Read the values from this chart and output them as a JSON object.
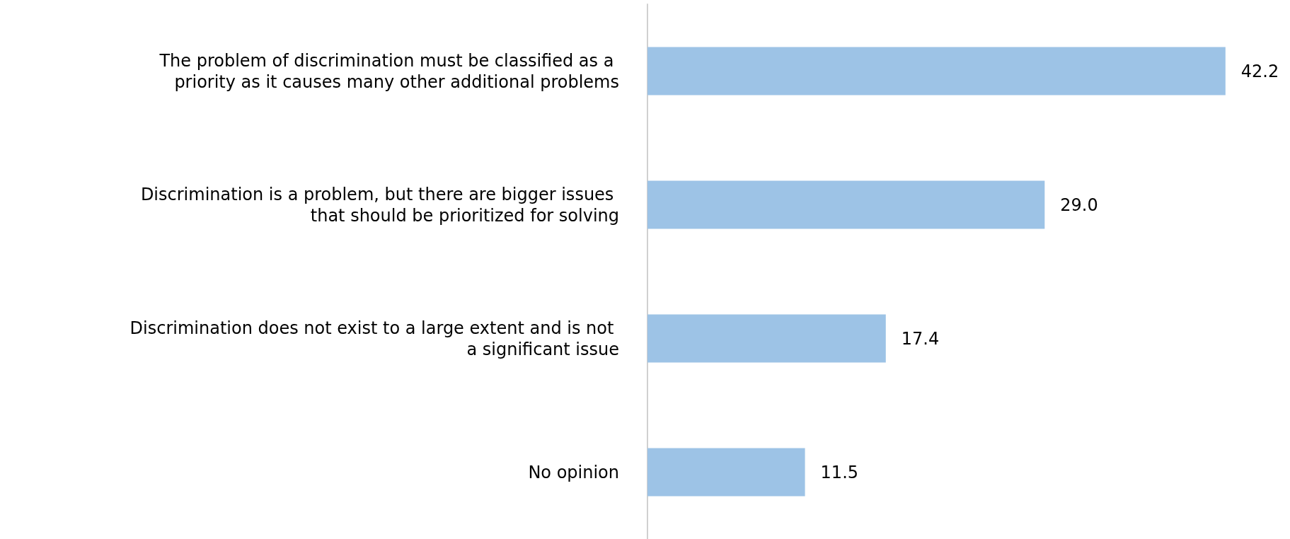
{
  "chart_data": {
    "type": "bar",
    "orientation": "horizontal",
    "categories": [
      "The problem of discrimination must be classified as a priority as it causes many other additional problems",
      "Discrimination is a problem, but there are bigger issues that should be prioritized for solving",
      "Discrimination does not exist to a large extent and is not a significant issue",
      "No opinion"
    ],
    "values": [
      42.2,
      29.0,
      17.4,
      11.5
    ],
    "color": "#9dc3e6",
    "value_labels": [
      "42.2",
      "29.0",
      "17.4",
      "11.5"
    ]
  }
}
